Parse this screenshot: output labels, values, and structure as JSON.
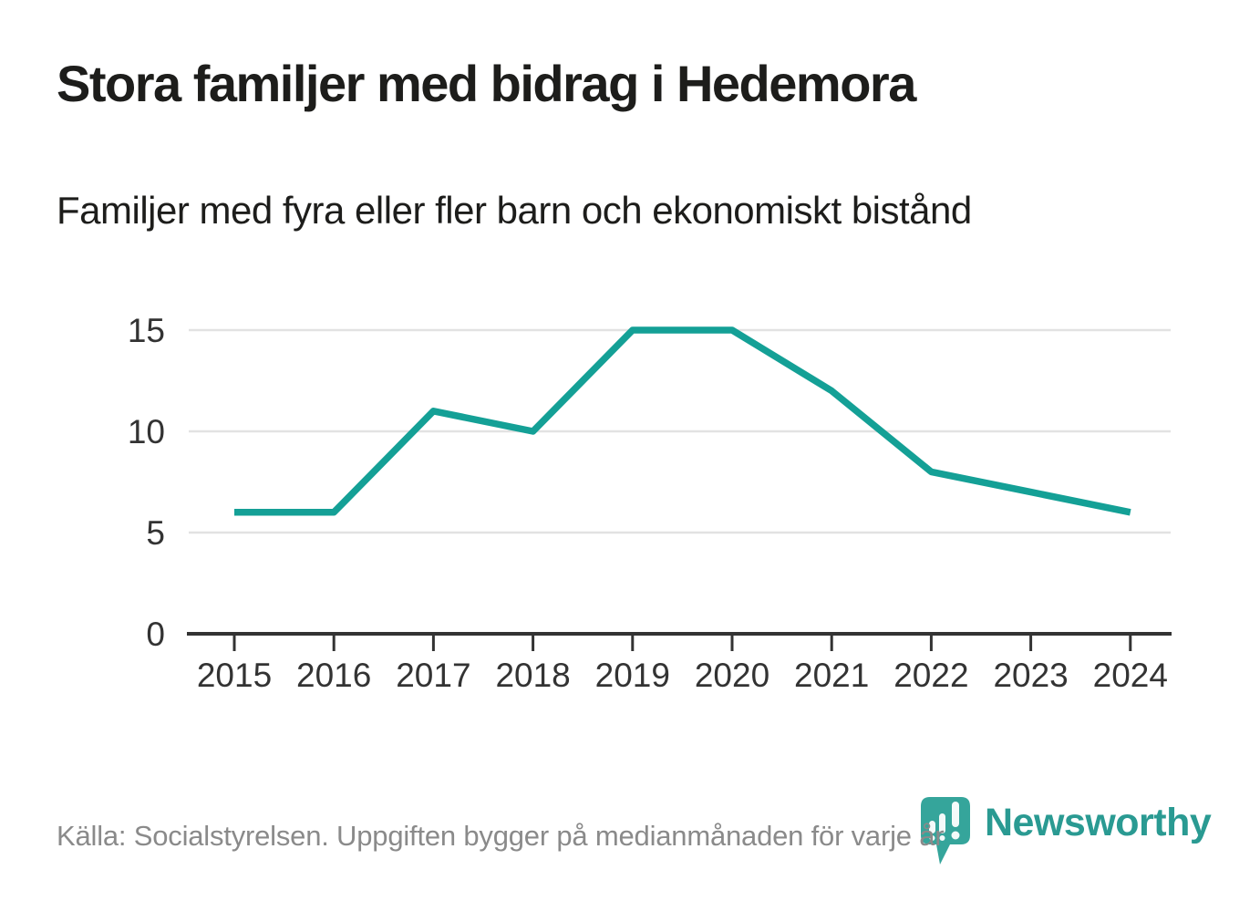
{
  "colors": {
    "accent": "#14a096",
    "logo_teal": "#2a9a92",
    "logo_icon_teal": "#35a59b",
    "axis": "#333333",
    "grid": "#e2e2e2",
    "title_text": "#1d1d1b",
    "muted_text": "#8a8a8a"
  },
  "chart_data": {
    "type": "line",
    "title": "Stora familjer med bidrag i Hedemora",
    "subtitle": "Familjer med fyra eller fler barn och ekonomiskt bistånd",
    "categories": [
      "2015",
      "2016",
      "2017",
      "2018",
      "2019",
      "2020",
      "2021",
      "2022",
      "2023",
      "2024"
    ],
    "values": [
      6,
      6,
      11,
      10,
      15,
      15,
      12,
      8,
      7,
      6
    ],
    "xlabel": "",
    "ylabel": "",
    "ylim": [
      0,
      15
    ],
    "yticks": [
      0,
      5,
      10,
      15
    ],
    "grid": "horizontal",
    "legend": "none",
    "line_color": "#14a096"
  },
  "footer": {
    "source": "Källa: Socialstyrelsen. Uppgiften bygger på medianmånaden för varje år",
    "logo_text": "Newsworthy"
  }
}
